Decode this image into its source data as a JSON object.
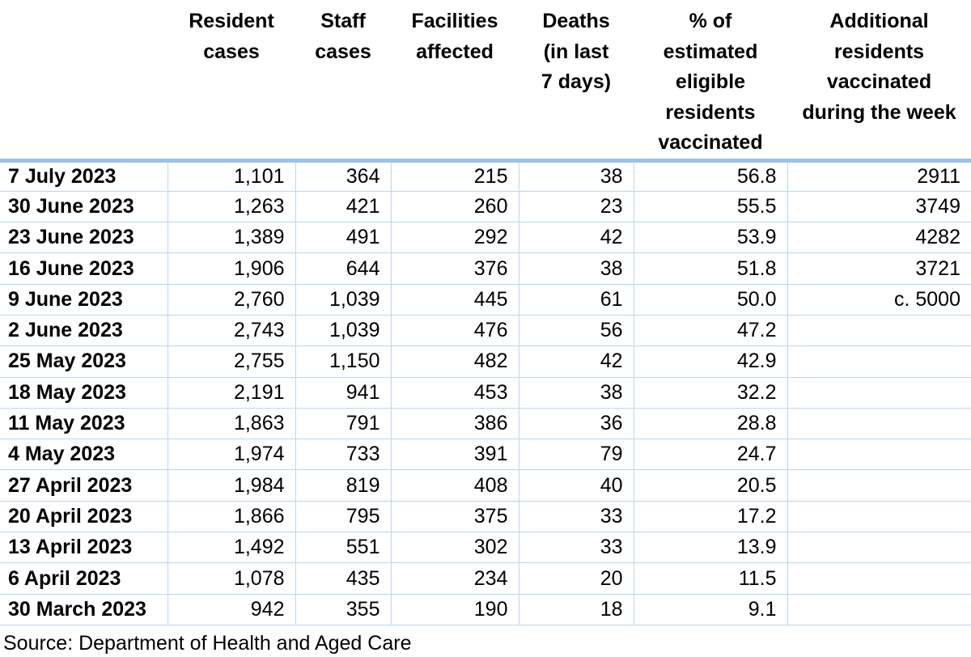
{
  "table": {
    "columns": [
      {
        "key": "date",
        "header_lines": []
      },
      {
        "key": "resident_cases",
        "header_lines": [
          "Resident",
          "cases"
        ]
      },
      {
        "key": "staff_cases",
        "header_lines": [
          "Staff",
          "cases"
        ]
      },
      {
        "key": "facilities_affected",
        "header_lines": [
          "Facilities",
          "affected"
        ]
      },
      {
        "key": "deaths_last_7_days",
        "header_lines": [
          "Deaths",
          "(in last",
          "7 days)"
        ]
      },
      {
        "key": "pct_eligible_residents_vaccinated",
        "header_lines": [
          "% of",
          "estimated",
          "eligible",
          "residents",
          "vaccinated"
        ]
      },
      {
        "key": "additional_residents_vaccinated",
        "header_lines": [
          "Additional",
          "residents",
          "vaccinated",
          "during the week"
        ]
      }
    ],
    "rows": [
      {
        "date": "7 July 2023",
        "values": [
          "1,101",
          "364",
          "215",
          "38",
          "56.8",
          "2911"
        ]
      },
      {
        "date": "30 June 2023",
        "values": [
          "1,263",
          "421",
          "260",
          "23",
          "55.5",
          "3749"
        ]
      },
      {
        "date": "23 June 2023",
        "values": [
          "1,389",
          "491",
          "292",
          "42",
          "53.9",
          "4282"
        ]
      },
      {
        "date": "16 June 2023",
        "values": [
          "1,906",
          "644",
          "376",
          "38",
          "51.8",
          "3721"
        ]
      },
      {
        "date": "9 June 2023",
        "values": [
          "2,760",
          "1,039",
          "445",
          "61",
          "50.0",
          "c. 5000"
        ]
      },
      {
        "date": "2 June 2023",
        "values": [
          "2,743",
          "1,039",
          "476",
          "56",
          "47.2",
          ""
        ]
      },
      {
        "date": "25 May 2023",
        "values": [
          "2,755",
          "1,150",
          "482",
          "42",
          "42.9",
          ""
        ]
      },
      {
        "date": "18 May 2023",
        "values": [
          "2,191",
          "941",
          "453",
          "38",
          "32.2",
          ""
        ]
      },
      {
        "date": "11 May 2023",
        "values": [
          "1,863",
          "791",
          "386",
          "36",
          "28.8",
          ""
        ]
      },
      {
        "date": "4 May 2023",
        "values": [
          "1,974",
          "733",
          "391",
          "79",
          "24.7",
          ""
        ]
      },
      {
        "date": "27 April 2023",
        "values": [
          "1,984",
          "819",
          "408",
          "40",
          "20.5",
          ""
        ]
      },
      {
        "date": "20 April 2023",
        "values": [
          "1,866",
          "795",
          "375",
          "33",
          "17.2",
          ""
        ]
      },
      {
        "date": "13 April 2023",
        "values": [
          "1,492",
          "551",
          "302",
          "33",
          "13.9",
          ""
        ]
      },
      {
        "date": "6 April 2023",
        "values": [
          "1,078",
          "435",
          "234",
          "20",
          "11.5",
          ""
        ]
      },
      {
        "date": "30 March 2023",
        "values": [
          "942",
          "355",
          "190",
          "18",
          "9.1",
          ""
        ]
      }
    ]
  },
  "source_note": "Source: Department of Health and Aged Care",
  "colors": {
    "thick_border": "#9CC3E6",
    "thin_border": "#BDD7EE",
    "text": "#000000"
  }
}
